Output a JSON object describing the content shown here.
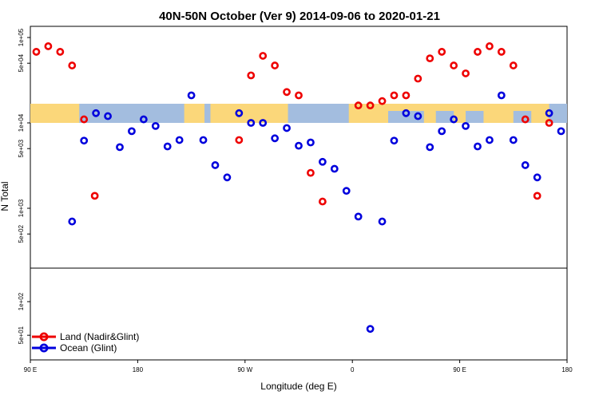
{
  "chart_data": {
    "type": "scatter",
    "title": "40N-50N October (Ver 9)   2014-09-06 to 2020-01-21",
    "xlabel": "Longitude (deg E)",
    "ylabel": "N Total",
    "x_ticks": [
      "90 E",
      "180",
      "90 W",
      "0",
      "90 E",
      "180"
    ],
    "y_ticks_upper": [
      "1e+05",
      "5e+04",
      "1e+04",
      "5e+03",
      "1e+03",
      "5e+02"
    ],
    "y_ticks_lower": [
      "1e+02",
      "5e+01"
    ],
    "xlim": [
      90,
      540
    ],
    "ylim_upper": [
      200,
      100000
    ],
    "ylim_lower": [
      20,
      200
    ],
    "y_scale": "log",
    "panels": [
      "upper (N Total, log scale) with land/ocean strip at ~1e+04",
      "lower (counts below ~200, log scale)"
    ],
    "legend_position": "bottom-left",
    "colors": {
      "land": "#ee0000",
      "ocean": "#0000dd",
      "strip_ocean": "#a3bddf",
      "strip_land": "#fbd77a"
    },
    "series": [
      {
        "name": "Land (Nadir&Glint)",
        "x": [
          95,
          105,
          115,
          125,
          135,
          144,
          265,
          275,
          285,
          295,
          305,
          315,
          325,
          335,
          365,
          375,
          385,
          395,
          405,
          415,
          425,
          435,
          445,
          455,
          465,
          475,
          485,
          495,
          505,
          515,
          525
        ],
        "y": [
          68000,
          79000,
          68000,
          47000,
          11000,
          1400,
          6300,
          36000,
          61000,
          47000,
          23000,
          21000,
          2600,
          1200,
          16000,
          16000,
          18000,
          21000,
          21000,
          33000,
          57000,
          68000,
          47000,
          38000,
          68000,
          79000,
          68000,
          47000,
          11000,
          1400,
          10000
        ]
      },
      {
        "name": "Ocean (Glint)",
        "x": [
          125,
          135,
          145,
          155,
          165,
          175,
          185,
          195,
          205,
          215,
          225,
          235,
          245,
          255,
          265,
          275,
          285,
          295,
          305,
          315,
          325,
          335,
          345,
          355,
          365,
          375,
          385,
          395,
          405,
          415,
          425,
          435,
          445,
          455,
          465,
          475,
          485,
          495,
          505,
          515,
          525,
          535
        ],
        "y": [
          700,
          6200,
          13000,
          12000,
          5200,
          8000,
          11000,
          9200,
          5300,
          6300,
          21000,
          6300,
          3200,
          2300,
          13000,
          10000,
          10000,
          6600,
          8700,
          5400,
          5900,
          3500,
          2900,
          1600,
          800,
          57,
          700,
          6200,
          13000,
          12000,
          5200,
          8000,
          11000,
          9200,
          5300,
          6300,
          21000,
          6300,
          3200,
          2300,
          13000,
          8000
        ]
      }
    ]
  }
}
